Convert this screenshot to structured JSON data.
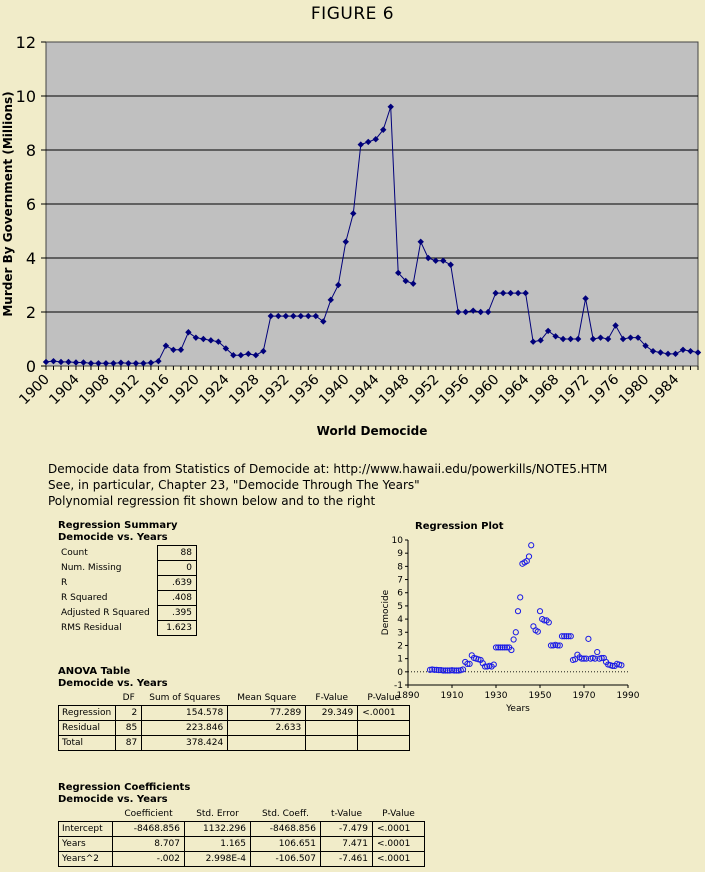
{
  "figure_title": "FIGURE 6",
  "captions": [
    "Democide data from Statistics of Democide at: http://www.hawaii.edu/powerkills/NOTE5.HTM",
    "See, in particular, Chapter 23, \"Democide Through The Years\"",
    "Polynomial regression fit shown below and to the right"
  ],
  "chart_data": [
    {
      "type": "line",
      "title": "FIGURE 6",
      "xlabel": "World Democide",
      "ylabel": "Murder By Government (Millions)",
      "ylim": [
        0,
        12
      ],
      "y_ticks": [
        0,
        2,
        4,
        6,
        8,
        10,
        12
      ],
      "x_tick_labels": [
        "1900",
        "1904",
        "1908",
        "1912",
        "1916",
        "1920",
        "1924",
        "1928",
        "1932",
        "1936",
        "1940",
        "1944",
        "1948",
        "1952",
        "1956",
        "1960",
        "1964",
        "1968",
        "1972",
        "1976",
        "1980",
        "1984"
      ],
      "grid": true,
      "x": [
        1900,
        1901,
        1902,
        1903,
        1904,
        1905,
        1906,
        1907,
        1908,
        1909,
        1910,
        1911,
        1912,
        1913,
        1914,
        1915,
        1916,
        1917,
        1918,
        1919,
        1920,
        1921,
        1922,
        1923,
        1924,
        1925,
        1926,
        1927,
        1928,
        1929,
        1930,
        1931,
        1932,
        1933,
        1934,
        1935,
        1936,
        1937,
        1938,
        1939,
        1940,
        1941,
        1942,
        1943,
        1944,
        1945,
        1946,
        1947,
        1948,
        1949,
        1950,
        1951,
        1952,
        1953,
        1954,
        1955,
        1956,
        1957,
        1958,
        1959,
        1960,
        1961,
        1962,
        1963,
        1964,
        1965,
        1966,
        1967,
        1968,
        1969,
        1970,
        1971,
        1972,
        1973,
        1974,
        1975,
        1976,
        1977,
        1978,
        1979,
        1980,
        1981,
        1982,
        1983,
        1984,
        1985,
        1986,
        1987
      ],
      "series": [
        {
          "values": [
            0.15,
            0.18,
            0.15,
            0.15,
            0.13,
            0.13,
            0.1,
            0.1,
            0.1,
            0.1,
            0.12,
            0.1,
            0.1,
            0.1,
            0.12,
            0.18,
            0.75,
            0.6,
            0.6,
            1.25,
            1.05,
            1.0,
            0.95,
            0.9,
            0.65,
            0.4,
            0.4,
            0.45,
            0.4,
            0.55,
            1.85,
            1.85,
            1.85,
            1.85,
            1.85,
            1.85,
            1.85,
            1.65,
            2.45,
            3.0,
            4.6,
            5.65,
            8.2,
            8.3,
            8.4,
            8.75,
            9.6,
            3.45,
            3.15,
            3.05,
            4.6,
            4.0,
            3.9,
            3.9,
            3.75,
            2.0,
            2.0,
            2.05,
            2.0,
            2.0,
            2.7,
            2.7,
            2.7,
            2.7,
            2.7,
            0.9,
            0.95,
            1.3,
            1.1,
            1.0,
            1.0,
            1.0,
            2.5,
            1.0,
            1.05,
            1.0,
            1.5,
            1.0,
            1.05,
            1.05,
            0.75,
            0.55,
            0.5,
            0.45,
            0.45,
            0.6,
            0.55,
            0.5
          ]
        }
      ],
      "colors": {
        "line": "#00007a",
        "plot_bg": "#c0c0c0"
      }
    },
    {
      "type": "scatter",
      "title": "Regression Plot",
      "xlabel": "Years",
      "ylabel": "Democide",
      "xlim": [
        1890,
        1990
      ],
      "ylim": [
        -1,
        10
      ],
      "x_ticks": [
        1890,
        1910,
        1930,
        1950,
        1970,
        1990
      ],
      "y_ticks": [
        -1,
        0,
        1,
        2,
        3,
        4,
        5,
        6,
        7,
        8,
        9,
        10
      ],
      "fit": {
        "intercept": -8468.856,
        "b1": 8.707,
        "b2": -0.002214
      },
      "colors": {
        "points": "#1a1ae6",
        "fit": "#000000"
      }
    }
  ],
  "summary": {
    "title": "Regression Summary",
    "subtitle": "Democide vs. Years",
    "rows": [
      {
        "label": "Count",
        "value": "88"
      },
      {
        "label": "Num. Missing",
        "value": "0"
      },
      {
        "label": "R",
        "value": ".639"
      },
      {
        "label": "R Squared",
        "value": ".408"
      },
      {
        "label": "Adjusted R Squared",
        "value": ".395"
      },
      {
        "label": "RMS Residual",
        "value": "1.623"
      }
    ]
  },
  "anova": {
    "title": "ANOVA Table",
    "subtitle": "Democide vs. Years",
    "headers": [
      "",
      "DF",
      "Sum of Squares",
      "Mean Square",
      "F-Value",
      "P-Value"
    ],
    "rows": [
      [
        "Regression",
        "2",
        "154.578",
        "77.289",
        "29.349",
        "<.0001"
      ],
      [
        "Residual",
        "85",
        "223.846",
        "2.633",
        "",
        ""
      ],
      [
        "Total",
        "87",
        "378.424",
        "",
        "",
        ""
      ]
    ]
  },
  "coefficients": {
    "title": "Regression Coefficients",
    "subtitle": "Democide vs. Years",
    "headers": [
      "",
      "Coefficient",
      "Std. Error",
      "Std. Coeff.",
      "t-Value",
      "P-Value"
    ],
    "rows": [
      [
        "Intercept",
        "-8468.856",
        "1132.296",
        "-8468.856",
        "-7.479",
        "<.0001"
      ],
      [
        "Years",
        "8.707",
        "1.165",
        "106.651",
        "7.471",
        "<.0001"
      ],
      [
        "Years^2",
        "-.002",
        "2.998E-4",
        "-106.507",
        "-7.461",
        "<.0001"
      ]
    ]
  }
}
